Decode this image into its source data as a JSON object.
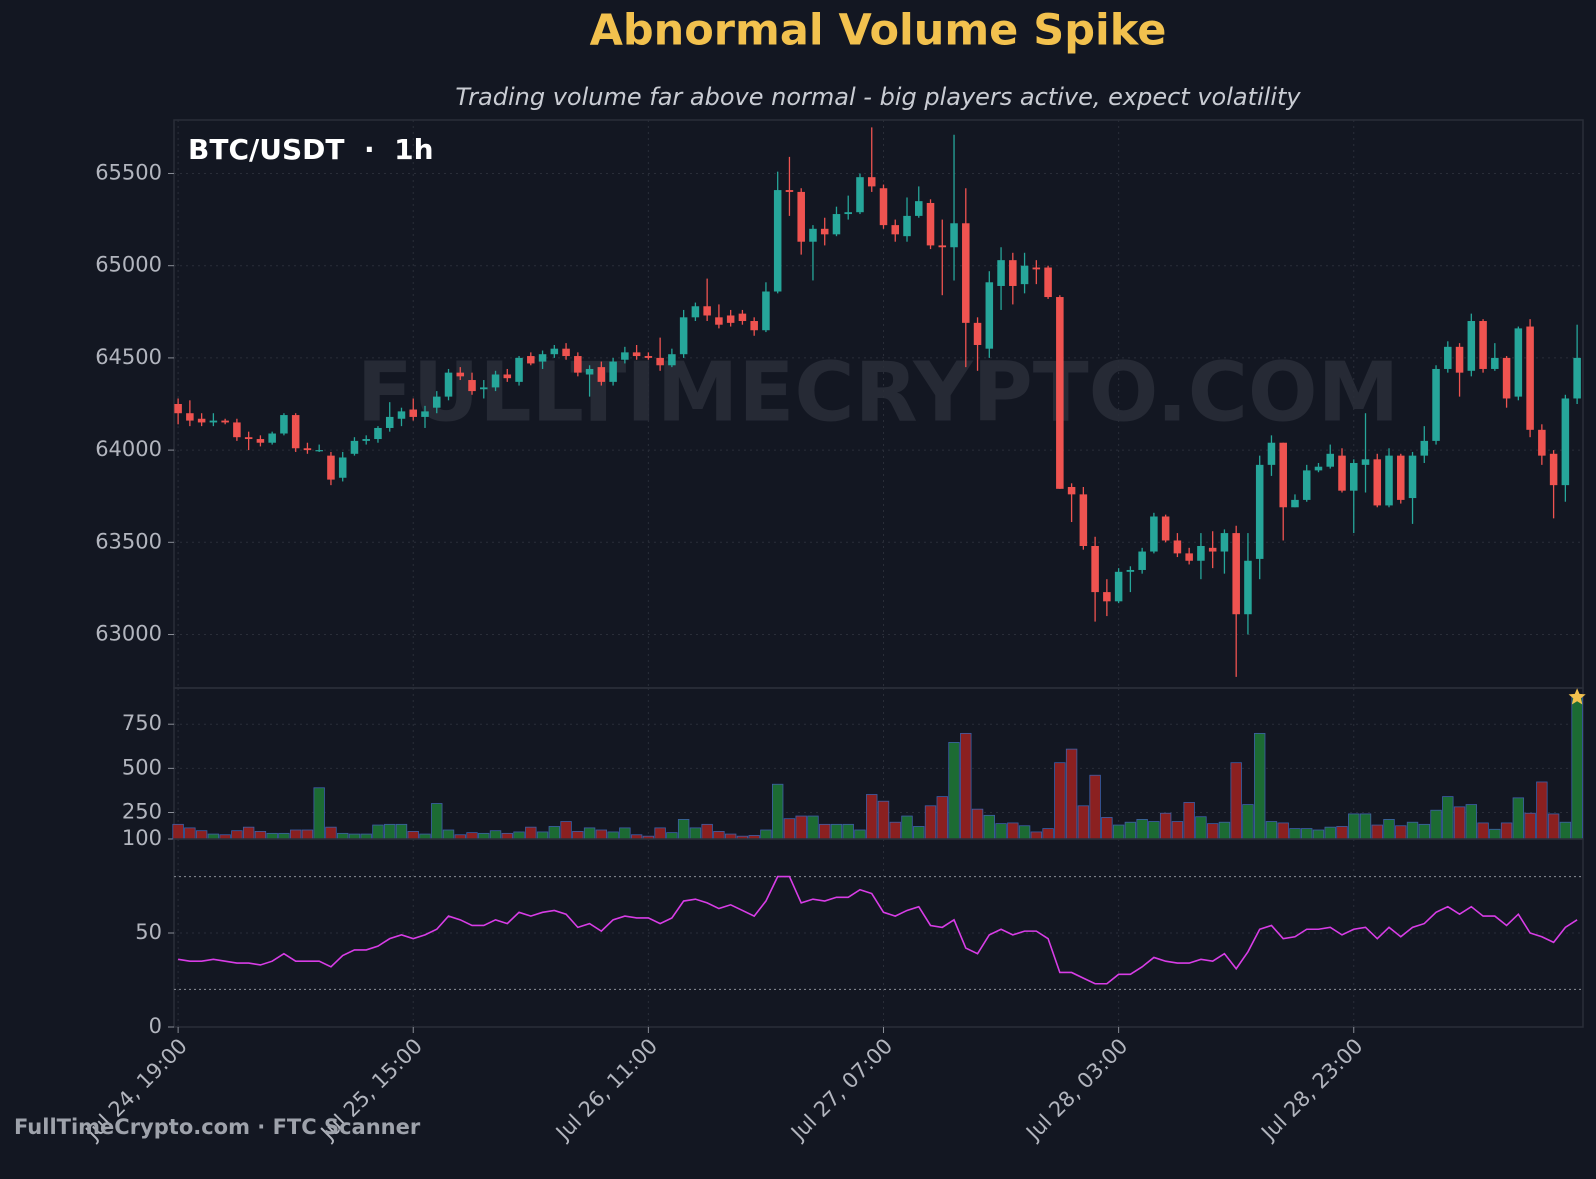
{
  "title": "Abnormal Volume Spike",
  "subtitle": "Trading volume far above normal - big players active, expect volatility",
  "watermark": "FULLTIMECRYPTO.COM",
  "footer": "FullTimeCrypto.com · FTC Scanner",
  "chart_data": [
    {
      "type": "candlestick",
      "label": "BTC/USDT  ·  1h",
      "up_color": "#26a69a",
      "down_color": "#ef5350",
      "grid": true,
      "xlim": [
        -0.35,
        119.5
      ],
      "xticks": [
        {
          "value": 0,
          "label": "Jul 24, 19:00"
        },
        {
          "value": 20,
          "label": "Jul 25, 15:00"
        },
        {
          "value": 40,
          "label": "Jul 26, 11:00"
        },
        {
          "value": 60,
          "label": "Jul 27, 07:00"
        },
        {
          "value": 80,
          "label": "Jul 28, 03:00"
        },
        {
          "value": 100,
          "label": "Jul 28, 23:00"
        }
      ],
      "ylim": [
        62710,
        65790
      ],
      "yticks": [
        63000,
        63500,
        64000,
        64500,
        65000,
        65500
      ],
      "open": [
        64250,
        64200,
        64170,
        64150,
        64160,
        64150,
        64070,
        64060,
        64040,
        64090,
        64190,
        64010,
        64000,
        63970,
        63850,
        63980,
        64050,
        64060,
        64120,
        64170,
        64220,
        64180,
        64230,
        64290,
        64420,
        64380,
        64330,
        64340,
        64410,
        64370,
        64510,
        64480,
        64520,
        64550,
        64510,
        64410,
        64450,
        64370,
        64490,
        64530,
        64510,
        64500,
        64460,
        64520,
        64720,
        64780,
        64720,
        64730,
        64740,
        64700,
        64650,
        64860,
        65410,
        65400,
        65130,
        65200,
        65170,
        65280,
        65290,
        65480,
        65420,
        65220,
        65160,
        65270,
        65340,
        65110,
        65100,
        65230,
        64690,
        64550,
        64890,
        65030,
        64900,
        64990,
        64990,
        64830,
        63800,
        63760,
        63480,
        63230,
        63180,
        63340,
        63350,
        63450,
        63640,
        63510,
        63440,
        63400,
        63470,
        63450,
        63550,
        63110,
        63410,
        63920,
        64040,
        63690,
        63730,
        63890,
        63910,
        63970,
        63780,
        63920,
        63950,
        63700,
        63970,
        63740,
        63970,
        64050,
        64440,
        64560,
        64430,
        64700,
        64440,
        64500,
        64290,
        64670,
        64110,
        63980,
        63810,
        64280
      ],
      "high": [
        64280,
        64270,
        64200,
        64200,
        64170,
        64170,
        64100,
        64080,
        64100,
        64200,
        64200,
        64040,
        64030,
        63990,
        63990,
        64070,
        64080,
        64130,
        64260,
        64230,
        64280,
        64240,
        64320,
        64440,
        64450,
        64420,
        64380,
        64430,
        64440,
        64510,
        64530,
        64540,
        64570,
        64580,
        64530,
        64460,
        64480,
        64500,
        64560,
        64570,
        64530,
        64610,
        64550,
        64760,
        64800,
        64930,
        64790,
        64760,
        64760,
        64720,
        64910,
        65510,
        65590,
        65420,
        65220,
        65260,
        65320,
        65380,
        65500,
        65750,
        65440,
        65250,
        65370,
        65430,
        65360,
        65250,
        65710,
        65420,
        64720,
        64970,
        65100,
        65070,
        65070,
        65030,
        65000,
        64840,
        63820,
        63800,
        63530,
        63300,
        63360,
        63370,
        63470,
        63660,
        63650,
        63550,
        63470,
        63550,
        63560,
        63570,
        63590,
        63550,
        63970,
        64080,
        64040,
        63760,
        63920,
        63930,
        64030,
        64010,
        63950,
        64200,
        63980,
        64010,
        63980,
        63990,
        64130,
        64460,
        64590,
        64580,
        64740,
        64710,
        64580,
        64510,
        64670,
        64710,
        64140,
        64000,
        64300,
        64680
      ],
      "low": [
        64140,
        64130,
        64130,
        64130,
        64140,
        64050,
        64000,
        64020,
        64030,
        64080,
        63990,
        63980,
        63990,
        63810,
        63830,
        63970,
        64030,
        64040,
        64100,
        64130,
        64160,
        64120,
        64200,
        64270,
        64380,
        64300,
        64280,
        64320,
        64370,
        64350,
        64460,
        64440,
        64500,
        64490,
        64400,
        64290,
        64350,
        64350,
        64470,
        64490,
        64490,
        64430,
        64450,
        64500,
        64700,
        64700,
        64660,
        64670,
        64680,
        64620,
        64640,
        64850,
        65270,
        65060,
        64920,
        65110,
        65160,
        65250,
        65280,
        65400,
        65200,
        65130,
        65130,
        65260,
        65090,
        64840,
        64920,
        64450,
        64430,
        64500,
        64760,
        64790,
        64850,
        64900,
        64820,
        63790,
        63610,
        63460,
        63070,
        63100,
        63170,
        63230,
        63330,
        63440,
        63500,
        63420,
        63380,
        63300,
        63360,
        63330,
        62770,
        63000,
        63300,
        63860,
        63510,
        63690,
        63720,
        63880,
        63900,
        63770,
        63550,
        63770,
        63690,
        63690,
        63710,
        63600,
        63930,
        64030,
        64420,
        64290,
        64400,
        64420,
        64430,
        64230,
        64270,
        64070,
        63920,
        63630,
        63720,
        64250
      ],
      "close": [
        64200,
        64160,
        64150,
        64160,
        64150,
        64070,
        64060,
        64040,
        64090,
        64190,
        64010,
        64000,
        64000,
        63840,
        63960,
        64050,
        64060,
        64120,
        64180,
        64210,
        64180,
        64210,
        64290,
        64420,
        64400,
        64320,
        64340,
        64410,
        64390,
        64500,
        64470,
        64520,
        64550,
        64510,
        64420,
        64440,
        64370,
        64480,
        64530,
        64510,
        64500,
        64460,
        64520,
        64720,
        64780,
        64730,
        64680,
        64690,
        64700,
        64650,
        64860,
        65410,
        65400,
        65130,
        65200,
        65170,
        65280,
        65290,
        65480,
        65430,
        65220,
        65170,
        65270,
        65350,
        65110,
        65100,
        65230,
        64690,
        64570,
        64910,
        65030,
        64890,
        65000,
        64980,
        64830,
        63790,
        63760,
        63480,
        63230,
        63180,
        63340,
        63350,
        63450,
        63640,
        63510,
        63440,
        63400,
        63480,
        63450,
        63550,
        63110,
        63400,
        63920,
        64040,
        63690,
        63730,
        63890,
        63910,
        63980,
        63780,
        63930,
        63950,
        63700,
        63970,
        63730,
        63970,
        64050,
        64440,
        64560,
        64420,
        64700,
        64440,
        64500,
        64280,
        64660,
        64110,
        63970,
        63810,
        64280,
        64500
      ]
    },
    {
      "type": "bar",
      "up_color": "#1c6b33",
      "down_color": "#8b2020",
      "edge_color": "#3d5fa8",
      "ylim": [
        100,
        955
      ],
      "yticks": [
        100,
        250,
        500,
        750
      ],
      "values": [
        183,
        163,
        147,
        128,
        124,
        147,
        167,
        143,
        132,
        132,
        151,
        151,
        390,
        167,
        132,
        128,
        128,
        179,
        183,
        183,
        143,
        128,
        301,
        151,
        124,
        136,
        132,
        147,
        132,
        140,
        167,
        140,
        171,
        199,
        143,
        163,
        151,
        140,
        163,
        124,
        116,
        163,
        136,
        211,
        163,
        183,
        143,
        128,
        116,
        120,
        151,
        410,
        215,
        230,
        230,
        183,
        183,
        183,
        151,
        352,
        314,
        195,
        230,
        171,
        288,
        340,
        647,
        698,
        269,
        234,
        187,
        191,
        175,
        140,
        159,
        532,
        609,
        288,
        461,
        222,
        179,
        195,
        211,
        199,
        246,
        199,
        307,
        226,
        187,
        195,
        532,
        295,
        698,
        199,
        191,
        159,
        159,
        151,
        167,
        171,
        242,
        242,
        179,
        211,
        175,
        195,
        183,
        263,
        340,
        282,
        295,
        191,
        155,
        191,
        333,
        246,
        423,
        242,
        195,
        903
      ]
    },
    {
      "type": "line",
      "color": "#d83de6",
      "levels": [
        20,
        80
      ],
      "ylim": [
        0,
        100
      ],
      "yticks": [
        0,
        50
      ],
      "values": [
        36,
        35,
        35,
        36,
        35,
        34,
        34,
        33,
        35,
        39,
        35,
        35,
        35,
        32,
        38,
        41,
        41,
        43,
        47,
        49,
        47,
        49,
        52,
        59,
        57,
        54,
        54,
        57,
        55,
        61,
        59,
        61,
        62,
        60,
        53,
        55,
        51,
        57,
        59,
        58,
        58,
        55,
        58,
        67,
        68,
        66,
        63,
        65,
        62,
        59,
        67,
        80,
        80,
        66,
        68,
        67,
        69,
        69,
        73,
        71,
        61,
        59,
        62,
        64,
        54,
        53,
        57,
        42,
        39,
        49,
        52,
        49,
        51,
        51,
        47,
        29,
        29,
        26,
        23,
        23,
        28,
        28,
        32,
        37,
        35,
        34,
        34,
        36,
        35,
        39,
        31,
        40,
        52,
        54,
        47,
        48,
        52,
        52,
        53,
        49,
        52,
        53,
        47,
        53,
        48,
        53,
        55,
        61,
        64,
        60,
        64,
        59,
        59,
        54,
        60,
        50,
        48,
        45,
        53,
        57
      ]
    }
  ]
}
